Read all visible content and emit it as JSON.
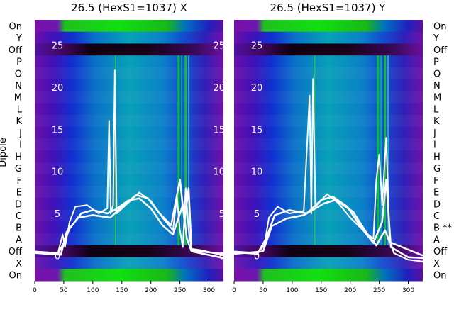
{
  "chart_data": [
    {
      "type": "heatmap",
      "title": "26.5 (HexS1=1037) X",
      "ylabel": "Dipole",
      "row_labels": [
        "On",
        "Y",
        "Off",
        "P",
        "O",
        "N",
        "M",
        "L",
        "K",
        "J",
        "I",
        "H",
        "G",
        "F",
        "E",
        "D",
        "C",
        "B",
        "A",
        "Off",
        "X",
        "On"
      ],
      "x_ticks": [
        0,
        50,
        100,
        150,
        200,
        250,
        300
      ],
      "xlim": [
        0,
        325
      ],
      "overlay_y_ticks": [
        25,
        20,
        15,
        10,
        5,
        0
      ],
      "overlay_ylim": [
        -3,
        28
      ],
      "overlay_lines": [
        {
          "points": [
            [
              0,
              0.5
            ],
            [
              40,
              0.3
            ],
            [
              48,
              2.5
            ],
            [
              52,
              1
            ],
            [
              60,
              4
            ],
            [
              70,
              5.8
            ],
            [
              90,
              6
            ],
            [
              110,
              5
            ],
            [
              125,
              5.6
            ],
            [
              128,
              16
            ],
            [
              131,
              5
            ],
            [
              135,
              6
            ],
            [
              138,
              22
            ],
            [
              141,
              5
            ],
            [
              160,
              6.2
            ],
            [
              180,
              7.5
            ],
            [
              200,
              6.5
            ],
            [
              220,
              4.5
            ],
            [
              238,
              3
            ],
            [
              245,
              7
            ],
            [
              250,
              3
            ],
            [
              255,
              1
            ],
            [
              260,
              8
            ],
            [
              265,
              3
            ],
            [
              270,
              0.8
            ],
            [
              290,
              0.6
            ],
            [
              325,
              0
            ]
          ]
        },
        {
          "points": [
            [
              0,
              0.4
            ],
            [
              40,
              0.2
            ],
            [
              50,
              1.5
            ],
            [
              60,
              3.2
            ],
            [
              80,
              5
            ],
            [
              100,
              5.4
            ],
            [
              125,
              5
            ],
            [
              140,
              5.5
            ],
            [
              160,
              6.5
            ],
            [
              180,
              6.8
            ],
            [
              200,
              5.6
            ],
            [
              220,
              3.6
            ],
            [
              238,
              2.5
            ],
            [
              255,
              6
            ],
            [
              262,
              2
            ],
            [
              270,
              0.5
            ],
            [
              325,
              -0.3
            ]
          ]
        },
        {
          "points": [
            [
              0,
              0.3
            ],
            [
              45,
              0.1
            ],
            [
              55,
              2.8
            ],
            [
              75,
              4.5
            ],
            [
              100,
              4.8
            ],
            [
              130,
              4.5
            ],
            [
              150,
              5.8
            ],
            [
              175,
              7.2
            ],
            [
              195,
              6.8
            ],
            [
              215,
              5
            ],
            [
              235,
              3.6
            ],
            [
              250,
              9
            ],
            [
              258,
              4
            ],
            [
              265,
              8
            ],
            [
              270,
              0.6
            ],
            [
              325,
              0.2
            ]
          ]
        }
      ]
    },
    {
      "type": "heatmap",
      "title": "26.5 (HexS1=1037) Y",
      "row_labels": [
        "On",
        "Y",
        "Off",
        "P",
        "O",
        "N",
        "M",
        "L",
        "K",
        "J",
        "I",
        "H",
        "G",
        "F",
        "E",
        "D",
        "C",
        "B **",
        "A",
        "Off",
        "X",
        "On"
      ],
      "x_ticks": [
        0,
        50,
        100,
        150,
        200,
        250,
        300
      ],
      "xlim": [
        0,
        325
      ],
      "overlay_y_ticks": [
        25,
        20,
        15,
        10,
        5,
        0
      ],
      "overlay_ylim": [
        -3,
        28
      ],
      "overlay_lines": [
        {
          "points": [
            [
              0,
              0.5
            ],
            [
              40,
              0.3
            ],
            [
              52,
              1.2
            ],
            [
              60,
              4.5
            ],
            [
              75,
              5.8
            ],
            [
              95,
              5
            ],
            [
              120,
              5.3
            ],
            [
              130,
              19
            ],
            [
              133,
              5
            ],
            [
              136,
              21
            ],
            [
              140,
              5.8
            ],
            [
              160,
              7.3
            ],
            [
              180,
              6.2
            ],
            [
              200,
              4.5
            ],
            [
              225,
              2.8
            ],
            [
              240,
              2
            ],
            [
              245,
              9
            ],
            [
              250,
              12
            ],
            [
              255,
              6
            ],
            [
              262,
              14
            ],
            [
              268,
              2
            ],
            [
              275,
              0.3
            ],
            [
              300,
              -0.5
            ],
            [
              325,
              -0.7
            ]
          ]
        },
        {
          "points": [
            [
              0,
              0.4
            ],
            [
              40,
              0.2
            ],
            [
              55,
              2
            ],
            [
              70,
              4.8
            ],
            [
              95,
              5.4
            ],
            [
              125,
              5
            ],
            [
              150,
              6.6
            ],
            [
              170,
              7
            ],
            [
              195,
              5.8
            ],
            [
              220,
              3.2
            ],
            [
              240,
              1.5
            ],
            [
              255,
              4
            ],
            [
              262,
              9
            ],
            [
              270,
              1
            ],
            [
              300,
              -0.2
            ],
            [
              325,
              -0.3
            ]
          ]
        },
        {
          "points": [
            [
              0,
              0.2
            ],
            [
              50,
              0.5
            ],
            [
              65,
              3.5
            ],
            [
              90,
              4.4
            ],
            [
              120,
              4.8
            ],
            [
              155,
              6.2
            ],
            [
              175,
              6.6
            ],
            [
              205,
              5.2
            ],
            [
              230,
              2.5
            ],
            [
              245,
              1.2
            ],
            [
              260,
              3
            ],
            [
              268,
              1.6
            ],
            [
              325,
              0
            ]
          ]
        }
      ]
    }
  ]
}
